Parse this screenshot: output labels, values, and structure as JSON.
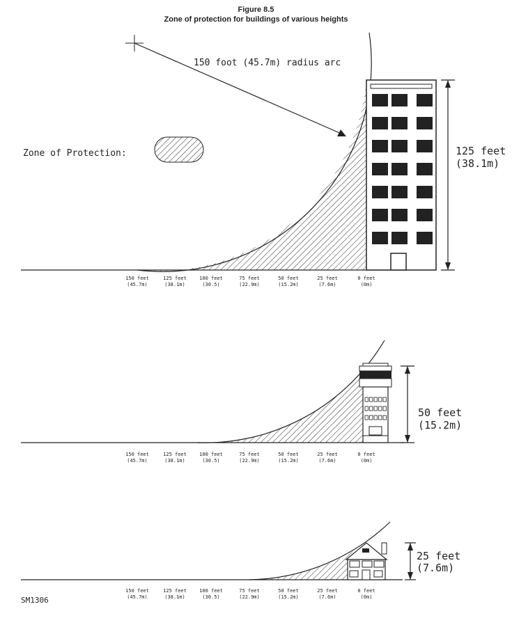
{
  "title": "Figure 8.5",
  "subtitle": "Zone of protection for buildings of various heights",
  "arc_label": "150 foot (45.7m) radius arc",
  "legend_label": "Zone of Protection:",
  "code": "SM1306",
  "ticks": [
    {
      "ft": "150 feet",
      "m": "(45.7m)"
    },
    {
      "ft": "125 feet",
      "m": "(38.1m)"
    },
    {
      "ft": "100 feet",
      "m": "(30.5)"
    },
    {
      "ft": "75 feet",
      "m": "(22.9m)"
    },
    {
      "ft": "50 feet",
      "m": "(15.2m)"
    },
    {
      "ft": "25 feet",
      "m": "(7.6m)"
    },
    {
      "ft": "0 feet",
      "m": "(0m)"
    }
  ],
  "panels": [
    {
      "height_ft": "125 feet",
      "height_m": "(38.1m)"
    },
    {
      "height_ft": "50 feet",
      "height_m": "(15.2m)"
    },
    {
      "height_ft": "25 feet",
      "height_m": "(7.6m)"
    }
  ]
}
